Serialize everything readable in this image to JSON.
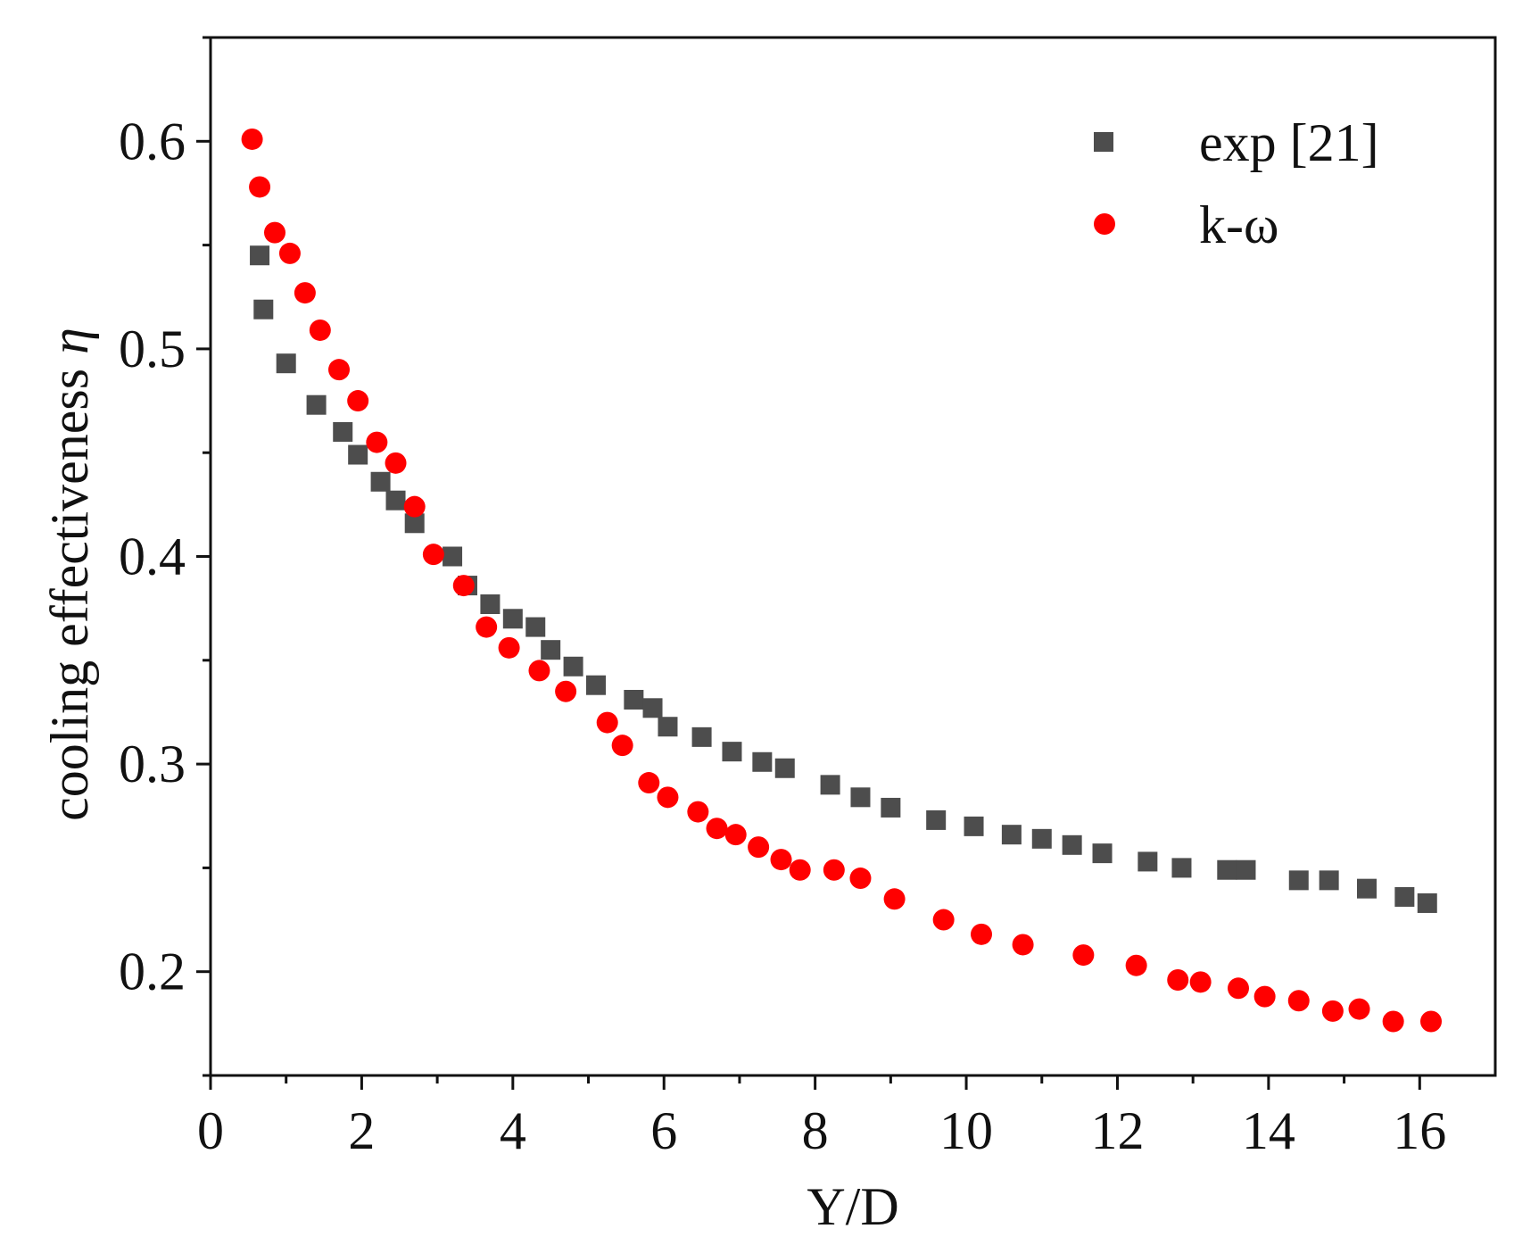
{
  "chart_data": {
    "type": "scatter",
    "title": "",
    "xlabel": "Y/D",
    "ylabel": "cooling effectiveness",
    "ylabel_symbol": "η",
    "xlim": [
      0,
      17
    ],
    "ylim": [
      0.15,
      0.65
    ],
    "xticks": [
      0,
      2,
      4,
      6,
      8,
      10,
      12,
      14,
      16
    ],
    "xtick_labels": [
      "0",
      "2",
      "4",
      "6",
      "8",
      "10",
      "12",
      "14",
      "16"
    ],
    "yticks": [
      0.2,
      0.3,
      0.4,
      0.5,
      0.6
    ],
    "ytick_labels": [
      "0.2",
      "0.3",
      "0.4",
      "0.5",
      "0.6"
    ],
    "grid": false,
    "legend_position": "top-right",
    "series": [
      {
        "name": "exp [21]",
        "marker": "square",
        "color": "#4d4d4d",
        "points": [
          [
            0.65,
            0.545
          ],
          [
            0.7,
            0.519
          ],
          [
            1.0,
            0.493
          ],
          [
            1.4,
            0.473
          ],
          [
            1.75,
            0.46
          ],
          [
            1.95,
            0.449
          ],
          [
            2.25,
            0.436
          ],
          [
            2.45,
            0.427
          ],
          [
            2.7,
            0.416
          ],
          [
            3.2,
            0.4
          ],
          [
            3.4,
            0.386
          ],
          [
            3.7,
            0.377
          ],
          [
            4.0,
            0.37
          ],
          [
            4.3,
            0.366
          ],
          [
            4.5,
            0.355
          ],
          [
            4.8,
            0.347
          ],
          [
            5.1,
            0.338
          ],
          [
            5.6,
            0.331
          ],
          [
            5.85,
            0.327
          ],
          [
            6.05,
            0.318
          ],
          [
            6.5,
            0.313
          ],
          [
            6.9,
            0.306
          ],
          [
            7.3,
            0.301
          ],
          [
            7.6,
            0.298
          ],
          [
            8.2,
            0.29
          ],
          [
            8.6,
            0.284
          ],
          [
            9.0,
            0.279
          ],
          [
            9.6,
            0.273
          ],
          [
            10.1,
            0.27
          ],
          [
            10.6,
            0.266
          ],
          [
            11.0,
            0.264
          ],
          [
            11.4,
            0.261
          ],
          [
            11.8,
            0.257
          ],
          [
            12.4,
            0.253
          ],
          [
            12.85,
            0.25
          ],
          [
            13.45,
            0.249
          ],
          [
            13.7,
            0.249
          ],
          [
            14.4,
            0.244
          ],
          [
            14.8,
            0.244
          ],
          [
            15.3,
            0.24
          ],
          [
            15.8,
            0.236
          ],
          [
            16.1,
            0.233
          ]
        ]
      },
      {
        "name": "k-ω",
        "marker": "circle",
        "color": "#ff0000",
        "points": [
          [
            0.55,
            0.601
          ],
          [
            0.65,
            0.578
          ],
          [
            0.85,
            0.556
          ],
          [
            1.05,
            0.546
          ],
          [
            1.25,
            0.527
          ],
          [
            1.45,
            0.509
          ],
          [
            1.7,
            0.49
          ],
          [
            1.95,
            0.475
          ],
          [
            2.2,
            0.455
          ],
          [
            2.45,
            0.445
          ],
          [
            2.7,
            0.424
          ],
          [
            2.95,
            0.401
          ],
          [
            3.35,
            0.386
          ],
          [
            3.65,
            0.366
          ],
          [
            3.95,
            0.356
          ],
          [
            4.35,
            0.345
          ],
          [
            4.7,
            0.335
          ],
          [
            5.25,
            0.32
          ],
          [
            5.45,
            0.309
          ],
          [
            5.8,
            0.291
          ],
          [
            6.05,
            0.284
          ],
          [
            6.45,
            0.277
          ],
          [
            6.7,
            0.269
          ],
          [
            6.95,
            0.266
          ],
          [
            7.25,
            0.26
          ],
          [
            7.55,
            0.254
          ],
          [
            7.8,
            0.249
          ],
          [
            8.25,
            0.249
          ],
          [
            8.6,
            0.245
          ],
          [
            9.05,
            0.235
          ],
          [
            9.7,
            0.225
          ],
          [
            10.2,
            0.218
          ],
          [
            10.75,
            0.213
          ],
          [
            11.55,
            0.208
          ],
          [
            12.25,
            0.203
          ],
          [
            12.8,
            0.196
          ],
          [
            13.1,
            0.195
          ],
          [
            13.6,
            0.192
          ],
          [
            13.95,
            0.188
          ],
          [
            14.4,
            0.186
          ],
          [
            14.85,
            0.181
          ],
          [
            15.2,
            0.182
          ],
          [
            15.65,
            0.176
          ],
          [
            16.15,
            0.176
          ]
        ]
      }
    ]
  }
}
